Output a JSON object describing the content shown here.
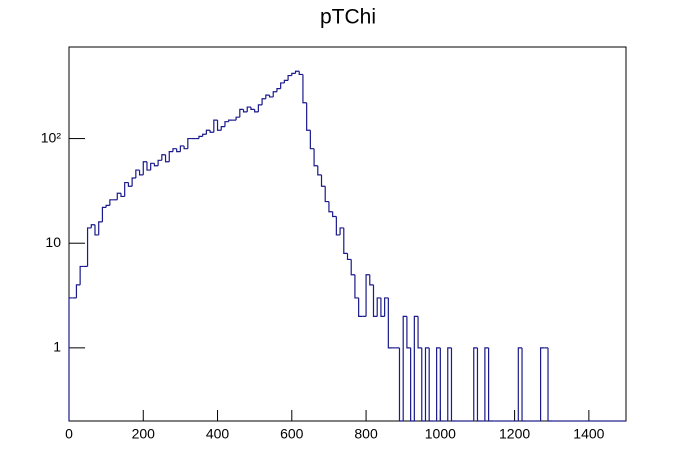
{
  "chart_data": {
    "type": "histogram",
    "title": "pTChi",
    "color": "#1a1a8c",
    "log_y": true,
    "bins": [
      0,
      10,
      20,
      30,
      40,
      50,
      60,
      70,
      80,
      90,
      100,
      110,
      120,
      130,
      140,
      150,
      160,
      170,
      180,
      190,
      200,
      210,
      220,
      230,
      240,
      250,
      260,
      270,
      280,
      290,
      300,
      310,
      320,
      330,
      340,
      350,
      360,
      370,
      380,
      390,
      400,
      410,
      420,
      430,
      440,
      450,
      460,
      470,
      480,
      490,
      500,
      510,
      520,
      530,
      540,
      550,
      560,
      570,
      580,
      590,
      600,
      610,
      620,
      630,
      640,
      650,
      660,
      670,
      680,
      690,
      700,
      710,
      720,
      730,
      740,
      750,
      760,
      770,
      780,
      790,
      800,
      810,
      820,
      830,
      840,
      850,
      860,
      870,
      880,
      890,
      900,
      910,
      920,
      930,
      940,
      950,
      960,
      970,
      980,
      990,
      1000,
      1010,
      1020,
      1030,
      1040,
      1050,
      1060,
      1070,
      1080,
      1090,
      1100,
      1110,
      1120,
      1130,
      1140,
      1150,
      1160,
      1170,
      1180,
      1190,
      1200,
      1210,
      1220,
      1230,
      1240,
      1250,
      1260,
      1270,
      1280,
      1290,
      1300,
      1310,
      1320,
      1330,
      1340,
      1350,
      1360,
      1370,
      1380,
      1390,
      1400,
      1410,
      1420,
      1430,
      1440,
      1450,
      1460,
      1470,
      1480,
      1490,
      1500
    ],
    "values": [
      3,
      3,
      4,
      6,
      6,
      14,
      15,
      12,
      16,
      22,
      23,
      26,
      26,
      30,
      28,
      38,
      35,
      42,
      50,
      45,
      60,
      50,
      58,
      55,
      62,
      70,
      60,
      75,
      80,
      75,
      85,
      80,
      100,
      100,
      100,
      105,
      110,
      120,
      115,
      150,
      120,
      130,
      145,
      150,
      150,
      160,
      190,
      180,
      200,
      190,
      180,
      210,
      240,
      260,
      250,
      280,
      300,
      340,
      360,
      400,
      420,
      440,
      410,
      220,
      120,
      80,
      55,
      45,
      35,
      25,
      20,
      18,
      12,
      14,
      8,
      7,
      5,
      3,
      2,
      2,
      5,
      4,
      2,
      3,
      2,
      3,
      1,
      1,
      1,
      0,
      2,
      1,
      0,
      2,
      1,
      0,
      1,
      0,
      0,
      1,
      0,
      0,
      1,
      0,
      0,
      0,
      0,
      0,
      0,
      1,
      0,
      0,
      1,
      0,
      0,
      0,
      0,
      0,
      0,
      0,
      0,
      1,
      0,
      0,
      0,
      0,
      0,
      1,
      1,
      0,
      0,
      0,
      0,
      0,
      0,
      0,
      0,
      0,
      0,
      0,
      0,
      0,
      0,
      0,
      0,
      0,
      0,
      0,
      0,
      0
    ],
    "xlim": [
      0,
      1500
    ],
    "xticks": [
      0,
      200,
      400,
      600,
      800,
      1000,
      1200,
      1400
    ],
    "ylim": [
      0.2,
      750
    ],
    "yticks": [
      1,
      10,
      {
        "value": 100,
        "label": "10²"
      }
    ]
  }
}
